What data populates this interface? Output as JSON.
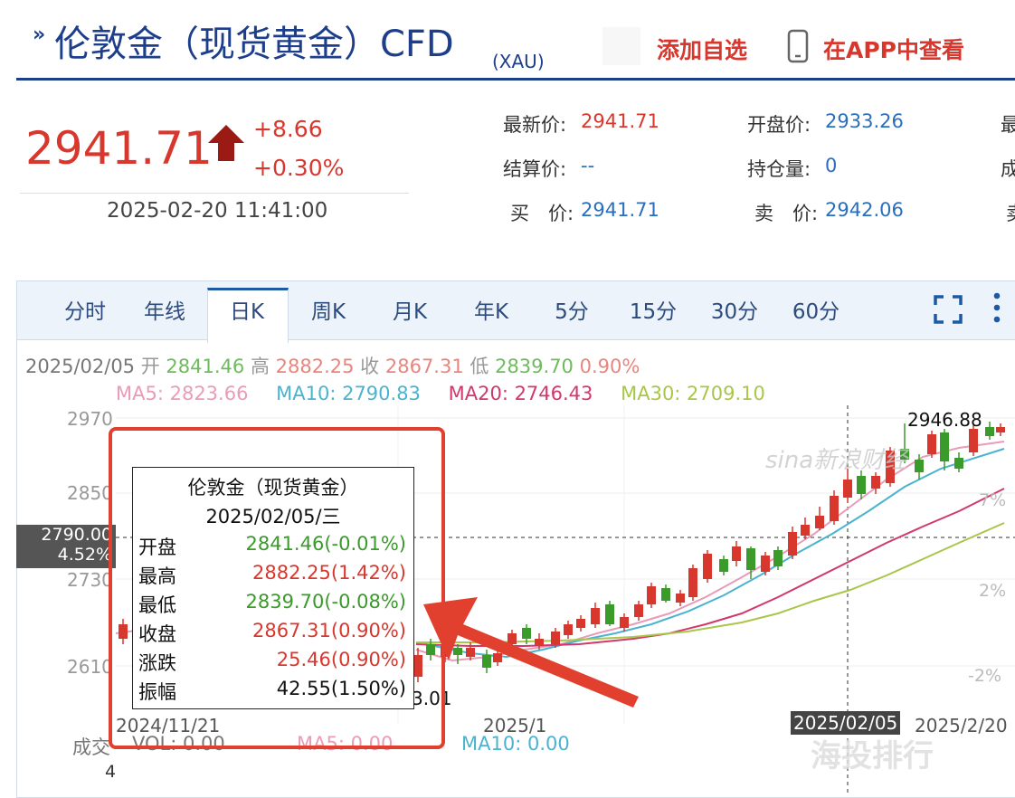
{
  "header": {
    "title_prefix_icon": "double-chevron-right-icon",
    "title": "伦敦金（现货黄金）CFD",
    "title_sub": "(XAU)",
    "add_watchlist": "添加自选",
    "view_in_app": "在APP中查看"
  },
  "price": {
    "last": "2941.71",
    "change": "+8.66",
    "change_pct": "+0.30%",
    "time": "2025-02-20 11:41:00",
    "up_color": "#d8372d"
  },
  "quote": {
    "latest_label": "最新价:",
    "latest_value": "2941.71",
    "open_label": "开盘价:",
    "open_value": "2933.26",
    "settle_label": "结算价:",
    "settle_value": "--",
    "oi_label": "持仓量:",
    "oi_value": "0",
    "bid_label": "买　价:",
    "bid_value": "2941.71",
    "ask_label": "卖　价:",
    "ask_value": "2942.06",
    "col3_row1": "最",
    "col3_row2": "成",
    "col3_row3": "卖"
  },
  "tabs": [
    "分时",
    "年线",
    "日K",
    "周K",
    "月K",
    "年K",
    "5分",
    "15分",
    "30分",
    "60分"
  ],
  "active_tab": "日K",
  "toolbar_icons": [
    "fullscreen-icon",
    "more-vertical-icon"
  ],
  "info": {
    "date": "2025/02/05",
    "open_label": "开",
    "open": "2841.46",
    "high_label": "高",
    "high": "2882.25",
    "close_label": "收",
    "close": "2867.31",
    "low_label": "低",
    "low": "2839.70",
    "pct": "0.90%"
  },
  "ma": {
    "ma5": "MA5: 2823.66",
    "ma10": "MA10: 2790.83",
    "ma20": "MA20: 2746.43",
    "ma30": "MA30: 2709.10"
  },
  "axis": {
    "y_ticks": [
      "2970",
      "2850",
      "2730",
      "2610"
    ],
    "crosshair_price": "2790.00",
    "crosshair_pct": "4.52%",
    "right_pct": [
      "7%",
      "2%",
      "-2%"
    ],
    "x_labels": [
      "2024/11/21",
      "2025/1",
      "2025/02/05",
      "2025/2/20"
    ],
    "peak_label": "2946.88",
    "low_label_partial": "3.01"
  },
  "volume": {
    "label": "成交",
    "vol": "VOL: 0.00",
    "ma5": "MA5: 0.00",
    "ma10": "MA10: 0.00",
    "axis_value": "4"
  },
  "watermarks": {
    "sina": "sina新浪财经",
    "app": "海投排行"
  },
  "tooltip": {
    "name": "伦敦金（现货黄金）",
    "date": "2025/02/05/三",
    "rows": [
      {
        "k": "开盘",
        "v": "2841.46(-0.01%)",
        "color": "#3a9a2a"
      },
      {
        "k": "最高",
        "v": "2882.25(1.42%)",
        "color": "#d8372d"
      },
      {
        "k": "最低",
        "v": "2839.70(-0.08%)",
        "color": "#3a9a2a"
      },
      {
        "k": "收盘",
        "v": "2867.31(0.90%)",
        "color": "#d8372d"
      },
      {
        "k": "涨跌",
        "v": "25.46(0.90%)",
        "color": "#d8372d"
      },
      {
        "k": "振幅",
        "v": "42.55(1.50%)",
        "color": "#111111"
      }
    ]
  },
  "colors": {
    "rise": "#d8372d",
    "fall": "#3a9a2a",
    "ma5": "#e99bb8",
    "ma10": "#4bb3cf",
    "ma20": "#d2386a",
    "ma30": "#a9c64a",
    "annotation": "#e2402f"
  }
}
